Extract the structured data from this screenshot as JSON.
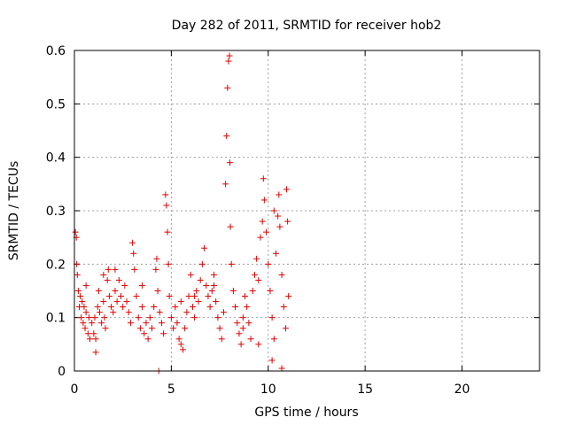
{
  "chart_data": {
    "type": "scatter",
    "title": "Day 282 of 2011, SRMTID for receiver hob2",
    "xlabel": "GPS time / hours",
    "ylabel": "SRMTID / TECUs",
    "xlim": [
      0,
      24
    ],
    "ylim": [
      0,
      0.6
    ],
    "x_ticks": [
      0,
      5,
      10,
      15,
      20
    ],
    "y_ticks": [
      0,
      0.1,
      0.2,
      0.3,
      0.4,
      0.5,
      0.6
    ],
    "x_tick_labels": [
      "0",
      "5",
      "10",
      "15",
      "20"
    ],
    "y_tick_labels": [
      "0",
      "0.1",
      "0.2",
      "0.3",
      "0.4",
      "0.5",
      "0.6"
    ],
    "grid": true,
    "marker": "+",
    "series": [
      {
        "name": "hob2",
        "color": "#e00000",
        "points": [
          [
            0.05,
            0.26
          ],
          [
            0.1,
            0.25
          ],
          [
            0.12,
            0.2
          ],
          [
            0.15,
            0.18
          ],
          [
            0.2,
            0.15
          ],
          [
            0.25,
            0.12
          ],
          [
            0.3,
            0.14
          ],
          [
            0.35,
            0.1
          ],
          [
            0.4,
            0.13
          ],
          [
            0.45,
            0.09
          ],
          [
            0.5,
            0.12
          ],
          [
            0.55,
            0.08
          ],
          [
            0.6,
            0.11
          ],
          [
            0.7,
            0.07
          ],
          [
            0.75,
            0.1
          ],
          [
            0.8,
            0.06
          ],
          [
            0.9,
            0.09
          ],
          [
            1.0,
            0.07
          ],
          [
            1.05,
            0.1
          ],
          [
            1.1,
            0.06
          ],
          [
            1.1,
            0.035
          ],
          [
            1.2,
            0.12
          ],
          [
            1.25,
            0.15
          ],
          [
            1.3,
            0.11
          ],
          [
            1.4,
            0.09
          ],
          [
            1.5,
            0.13
          ],
          [
            1.55,
            0.1
          ],
          [
            1.6,
            0.08
          ],
          [
            1.7,
            0.17
          ],
          [
            1.75,
            0.19
          ],
          [
            1.8,
            0.14
          ],
          [
            1.9,
            0.12
          ],
          [
            2.0,
            0.11
          ],
          [
            2.1,
            0.15
          ],
          [
            2.2,
            0.13
          ],
          [
            2.3,
            0.17
          ],
          [
            2.4,
            0.14
          ],
          [
            2.5,
            0.12
          ],
          [
            2.6,
            0.16
          ],
          [
            2.7,
            0.13
          ],
          [
            2.8,
            0.11
          ],
          [
            2.9,
            0.09
          ],
          [
            3.0,
            0.24
          ],
          [
            3.05,
            0.22
          ],
          [
            3.1,
            0.19
          ],
          [
            3.2,
            0.14
          ],
          [
            3.3,
            0.1
          ],
          [
            3.4,
            0.08
          ],
          [
            3.5,
            0.12
          ],
          [
            3.6,
            0.07
          ],
          [
            3.7,
            0.09
          ],
          [
            3.8,
            0.06
          ],
          [
            3.9,
            0.1
          ],
          [
            4.0,
            0.08
          ],
          [
            4.1,
            0.12
          ],
          [
            4.2,
            0.19
          ],
          [
            4.25,
            0.21
          ],
          [
            4.3,
            0.15
          ],
          [
            4.4,
            0.11
          ],
          [
            4.5,
            0.09
          ],
          [
            4.6,
            0.07
          ],
          [
            4.7,
            0.33
          ],
          [
            4.75,
            0.31
          ],
          [
            4.8,
            0.26
          ],
          [
            4.85,
            0.2
          ],
          [
            4.9,
            0.14
          ],
          [
            5.0,
            0.1
          ],
          [
            5.1,
            0.08
          ],
          [
            5.2,
            0.12
          ],
          [
            5.3,
            0.09
          ],
          [
            5.4,
            0.06
          ],
          [
            5.5,
            0.05
          ],
          [
            5.6,
            0.04
          ],
          [
            5.7,
            0.08
          ],
          [
            5.8,
            0.11
          ],
          [
            5.9,
            0.14
          ],
          [
            6.0,
            0.18
          ],
          [
            6.1,
            0.12
          ],
          [
            6.2,
            0.1
          ],
          [
            6.3,
            0.15
          ],
          [
            6.4,
            0.13
          ],
          [
            6.5,
            0.17
          ],
          [
            6.6,
            0.2
          ],
          [
            6.7,
            0.23
          ],
          [
            6.8,
            0.16
          ],
          [
            6.9,
            0.14
          ],
          [
            7.0,
            0.12
          ],
          [
            7.1,
            0.15
          ],
          [
            7.2,
            0.18
          ],
          [
            7.3,
            0.13
          ],
          [
            7.4,
            0.1
          ],
          [
            7.5,
            0.08
          ],
          [
            7.6,
            0.06
          ],
          [
            7.7,
            0.11
          ],
          [
            7.8,
            0.35
          ],
          [
            7.85,
            0.44
          ],
          [
            7.9,
            0.53
          ],
          [
            7.95,
            0.58
          ],
          [
            8.0,
            0.59
          ],
          [
            8.02,
            0.39
          ],
          [
            8.05,
            0.27
          ],
          [
            8.1,
            0.2
          ],
          [
            8.2,
            0.15
          ],
          [
            8.3,
            0.12
          ],
          [
            8.4,
            0.09
          ],
          [
            8.5,
            0.07
          ],
          [
            8.6,
            0.05
          ],
          [
            8.7,
            0.1
          ],
          [
            8.8,
            0.14
          ],
          [
            8.9,
            0.12
          ],
          [
            9.0,
            0.09
          ],
          [
            9.1,
            0.06
          ],
          [
            9.2,
            0.15
          ],
          [
            9.3,
            0.18
          ],
          [
            9.4,
            0.21
          ],
          [
            9.5,
            0.17
          ],
          [
            9.6,
            0.25
          ],
          [
            9.7,
            0.28
          ],
          [
            9.75,
            0.36
          ],
          [
            9.8,
            0.32
          ],
          [
            9.9,
            0.26
          ],
          [
            10.0,
            0.2
          ],
          [
            10.1,
            0.15
          ],
          [
            10.2,
            0.1
          ],
          [
            10.3,
            0.06
          ],
          [
            10.4,
            0.22
          ],
          [
            10.5,
            0.29
          ],
          [
            10.55,
            0.33
          ],
          [
            10.6,
            0.27
          ],
          [
            10.7,
            0.18
          ],
          [
            10.8,
            0.12
          ],
          [
            10.9,
            0.08
          ],
          [
            10.95,
            0.34
          ],
          [
            11.0,
            0.28
          ],
          [
            11.05,
            0.14
          ],
          [
            0.6,
            0.16
          ],
          [
            1.5,
            0.18
          ],
          [
            2.1,
            0.19
          ],
          [
            3.5,
            0.16
          ],
          [
            5.5,
            0.13
          ],
          [
            6.2,
            0.14
          ],
          [
            7.2,
            0.16
          ],
          [
            8.7,
            0.08
          ],
          [
            9.5,
            0.05
          ],
          [
            10.2,
            0.02
          ],
          [
            10.7,
            0.005
          ],
          [
            10.3,
            0.3
          ],
          [
            4.35,
            0.0
          ]
        ]
      }
    ]
  }
}
